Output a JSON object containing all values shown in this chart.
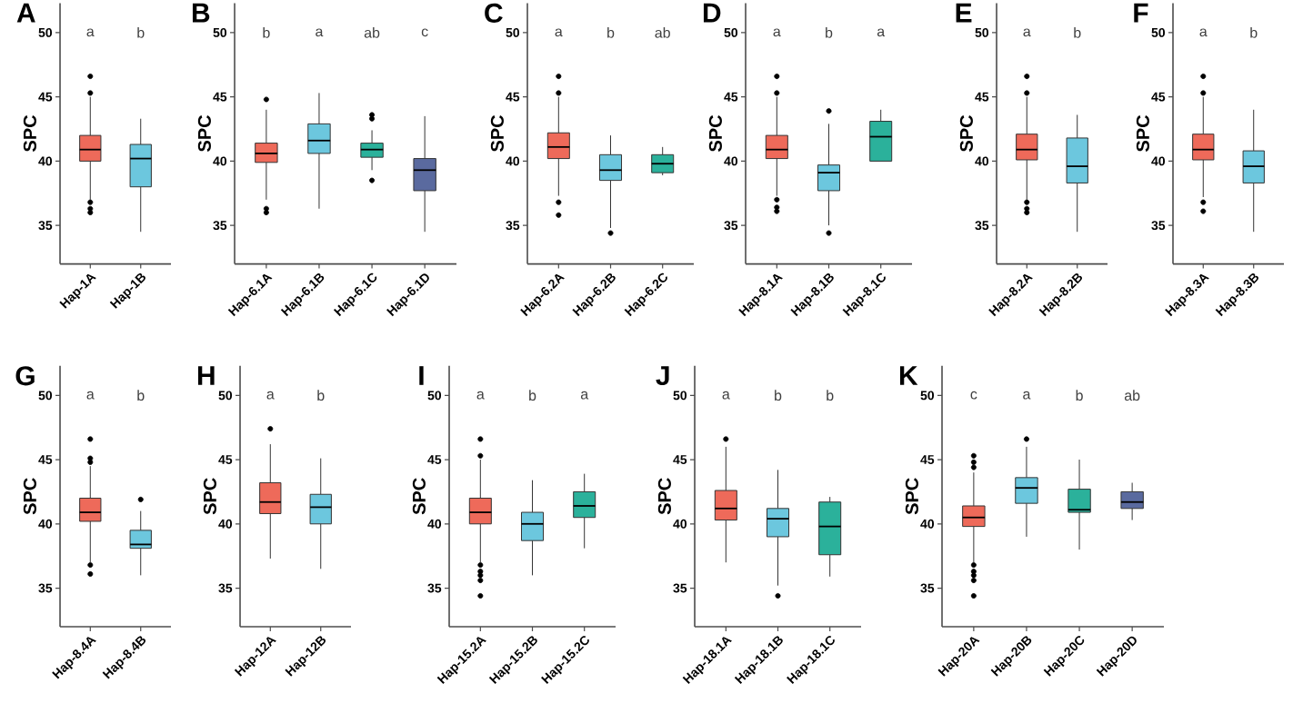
{
  "chart_data": [
    {
      "type": "box",
      "title": "A",
      "ylabel": "SPC",
      "categories": [
        "Hap-1A",
        "Hap-1B"
      ],
      "colors": [
        "#ee6a5a",
        "#6cc7de"
      ],
      "ylim": [
        32,
        52.3
      ],
      "yticks": [
        35,
        40,
        45,
        50
      ],
      "boxes": [
        {
          "low": 37.0,
          "q1": 40.0,
          "median": 40.9,
          "q3": 42.0,
          "high": 45.0,
          "outliers": [
            46.6,
            45.3,
            36.8,
            36.3,
            36.0
          ]
        },
        {
          "low": 34.5,
          "q1": 38.0,
          "median": 40.2,
          "q3": 41.3,
          "high": 43.3
        }
      ],
      "annotations": [
        "a",
        "b"
      ]
    },
    {
      "type": "box",
      "title": "B",
      "ylabel": "SPC",
      "categories": [
        "Hap-6.1A",
        "Hap-6.1B",
        "Hap-6.1C",
        "Hap-6.1D"
      ],
      "colors": [
        "#ee6a5a",
        "#6cc7de",
        "#2bb19b",
        "#5a6a9f"
      ],
      "ylim": [
        32,
        52.3
      ],
      "yticks": [
        35,
        40,
        45,
        50
      ],
      "boxes": [
        {
          "low": 37.0,
          "q1": 39.9,
          "median": 40.6,
          "q3": 41.4,
          "high": 44.0,
          "outliers": [
            44.8,
            36.3,
            36.0
          ]
        },
        {
          "low": 36.3,
          "q1": 40.6,
          "median": 41.6,
          "q3": 42.9,
          "high": 45.3
        },
        {
          "low": 39.3,
          "q1": 40.3,
          "median": 40.9,
          "q3": 41.4,
          "high": 42.4,
          "outliers": [
            43.6,
            43.3,
            38.5
          ]
        },
        {
          "low": 34.5,
          "q1": 37.7,
          "median": 39.3,
          "q3": 40.2,
          "high": 43.5
        }
      ],
      "annotations": [
        "b",
        "a",
        "ab",
        "c"
      ]
    },
    {
      "type": "box",
      "title": "C",
      "ylabel": "SPC",
      "categories": [
        "Hap-6.2A",
        "Hap-6.2B",
        "Hap-6.2C"
      ],
      "colors": [
        "#ee6a5a",
        "#6cc7de",
        "#2bb19b"
      ],
      "ylim": [
        32,
        52.3
      ],
      "yticks": [
        35,
        40,
        45,
        50
      ],
      "boxes": [
        {
          "low": 37.3,
          "q1": 40.2,
          "median": 41.1,
          "q3": 42.2,
          "high": 45.0,
          "outliers": [
            46.6,
            45.3,
            36.8,
            35.8
          ]
        },
        {
          "low": 34.8,
          "q1": 38.5,
          "median": 39.3,
          "q3": 40.5,
          "high": 42.0,
          "outliers": [
            34.4
          ]
        },
        {
          "low": 38.9,
          "q1": 39.1,
          "median": 39.8,
          "q3": 40.5,
          "high": 41.1
        }
      ],
      "annotations": [
        "a",
        "b",
        "ab"
      ]
    },
    {
      "type": "box",
      "title": "D",
      "ylabel": "SPC",
      "categories": [
        "Hap-8.1A",
        "Hap-8.1B",
        "Hap-8.1C"
      ],
      "colors": [
        "#ee6a5a",
        "#6cc7de",
        "#2bb19b"
      ],
      "ylim": [
        32,
        52.3
      ],
      "yticks": [
        35,
        40,
        45,
        50
      ],
      "boxes": [
        {
          "low": 37.3,
          "q1": 40.2,
          "median": 40.9,
          "q3": 42.0,
          "high": 45.0,
          "outliers": [
            46.6,
            45.3,
            37.0,
            36.4,
            36.1
          ]
        },
        {
          "low": 35.0,
          "q1": 37.7,
          "median": 39.1,
          "q3": 39.7,
          "high": 42.9,
          "outliers": [
            43.9,
            34.4
          ]
        },
        {
          "low": 40.0,
          "q1": 40.0,
          "median": 41.9,
          "q3": 43.1,
          "high": 44.0
        }
      ],
      "annotations": [
        "a",
        "b",
        "a"
      ]
    },
    {
      "type": "box",
      "title": "E",
      "ylabel": "SPC",
      "categories": [
        "Hap-8.2A",
        "Hap-8.2B"
      ],
      "colors": [
        "#ee6a5a",
        "#6cc7de"
      ],
      "ylim": [
        32,
        52.3
      ],
      "yticks": [
        35,
        40,
        45,
        50
      ],
      "boxes": [
        {
          "low": 37.0,
          "q1": 40.1,
          "median": 40.9,
          "q3": 42.1,
          "high": 45.0,
          "outliers": [
            46.6,
            45.3,
            36.8,
            36.3,
            36.0
          ]
        },
        {
          "low": 34.5,
          "q1": 38.3,
          "median": 39.6,
          "q3": 41.8,
          "high": 43.6
        }
      ],
      "annotations": [
        "a",
        "b"
      ]
    },
    {
      "type": "box",
      "title": "F",
      "ylabel": "SPC",
      "categories": [
        "Hap-8.3A",
        "Hap-8.3B"
      ],
      "colors": [
        "#ee6a5a",
        "#6cc7de"
      ],
      "ylim": [
        32,
        52.3
      ],
      "yticks": [
        35,
        40,
        45,
        50
      ],
      "boxes": [
        {
          "low": 37.2,
          "q1": 40.1,
          "median": 40.9,
          "q3": 42.1,
          "high": 45.0,
          "outliers": [
            46.6,
            45.3,
            36.8,
            36.1
          ]
        },
        {
          "low": 34.5,
          "q1": 38.3,
          "median": 39.6,
          "q3": 40.8,
          "high": 44.0
        }
      ],
      "annotations": [
        "a",
        "b"
      ]
    },
    {
      "type": "box",
      "title": "G",
      "ylabel": "SPC",
      "categories": [
        "Hap-8.4A",
        "Hap-8.4B"
      ],
      "colors": [
        "#ee6a5a",
        "#6cc7de"
      ],
      "ylim": [
        32,
        52.3
      ],
      "yticks": [
        35,
        40,
        45,
        50
      ],
      "boxes": [
        {
          "low": 37.0,
          "q1": 40.2,
          "median": 40.9,
          "q3": 42.0,
          "high": 44.5,
          "outliers": [
            46.6,
            45.1,
            44.8,
            36.8,
            36.1
          ]
        },
        {
          "low": 36.0,
          "q1": 38.1,
          "median": 38.4,
          "q3": 39.5,
          "high": 41.0,
          "outliers": [
            41.9
          ]
        }
      ],
      "annotations": [
        "a",
        "b"
      ]
    },
    {
      "type": "box",
      "title": "H",
      "ylabel": "SPC",
      "categories": [
        "Hap-12A",
        "Hap-12B"
      ],
      "colors": [
        "#ee6a5a",
        "#6cc7de"
      ],
      "ylim": [
        32,
        52.3
      ],
      "yticks": [
        35,
        40,
        45,
        50
      ],
      "boxes": [
        {
          "low": 37.3,
          "q1": 40.8,
          "median": 41.7,
          "q3": 43.2,
          "high": 46.2,
          "outliers": [
            47.4
          ]
        },
        {
          "low": 36.5,
          "q1": 40.0,
          "median": 41.3,
          "q3": 42.3,
          "high": 45.1
        }
      ],
      "annotations": [
        "a",
        "b"
      ]
    },
    {
      "type": "box",
      "title": "I",
      "ylabel": "SPC",
      "categories": [
        "Hap-15.2A",
        "Hap-15.2B",
        "Hap-15.2C"
      ],
      "colors": [
        "#ee6a5a",
        "#6cc7de",
        "#2bb19b"
      ],
      "ylim": [
        32,
        52.3
      ],
      "yticks": [
        35,
        40,
        45,
        50
      ],
      "boxes": [
        {
          "low": 37.0,
          "q1": 40.0,
          "median": 40.9,
          "q3": 42.0,
          "high": 45.0,
          "outliers": [
            46.6,
            45.3,
            36.8,
            36.3,
            36.0,
            35.6,
            34.4
          ]
        },
        {
          "low": 36.0,
          "q1": 38.7,
          "median": 40.0,
          "q3": 40.9,
          "high": 43.4
        },
        {
          "low": 38.1,
          "q1": 40.5,
          "median": 41.4,
          "q3": 42.5,
          "high": 43.9
        }
      ],
      "annotations": [
        "a",
        "b",
        "a"
      ]
    },
    {
      "type": "box",
      "title": "J",
      "ylabel": "SPC",
      "categories": [
        "Hap-18.1A",
        "Hap-18.1B",
        "Hap-18.1C"
      ],
      "colors": [
        "#ee6a5a",
        "#6cc7de",
        "#2bb19b"
      ],
      "ylim": [
        32,
        52.3
      ],
      "yticks": [
        35,
        40,
        45,
        50
      ],
      "boxes": [
        {
          "low": 37.0,
          "q1": 40.3,
          "median": 41.2,
          "q3": 42.6,
          "high": 46.0,
          "outliers": [
            46.6
          ]
        },
        {
          "low": 35.2,
          "q1": 39.0,
          "median": 40.4,
          "q3": 41.2,
          "high": 44.2,
          "outliers": [
            34.4
          ]
        },
        {
          "low": 35.9,
          "q1": 37.6,
          "median": 39.8,
          "q3": 41.7,
          "high": 42.1
        }
      ],
      "annotations": [
        "a",
        "b",
        "b"
      ]
    },
    {
      "type": "box",
      "title": "K",
      "ylabel": "SPC",
      "categories": [
        "Hap-20A",
        "Hap-20B",
        "Hap-20C",
        "Hap-20D"
      ],
      "colors": [
        "#ee6a5a",
        "#6cc7de",
        "#2bb19b",
        "#5a6a9f"
      ],
      "ylim": [
        32,
        52.3
      ],
      "yticks": [
        35,
        40,
        45,
        50
      ],
      "boxes": [
        {
          "low": 37.0,
          "q1": 39.8,
          "median": 40.5,
          "q3": 41.4,
          "high": 44.0,
          "outliers": [
            45.3,
            44.8,
            44.4,
            36.8,
            36.3,
            36.0,
            35.6,
            34.4
          ]
        },
        {
          "low": 39.0,
          "q1": 41.6,
          "median": 42.8,
          "q3": 43.6,
          "high": 46.0,
          "outliers": [
            46.6
          ]
        },
        {
          "low": 38.0,
          "q1": 40.9,
          "median": 41.1,
          "q3": 42.7,
          "high": 45.0
        },
        {
          "low": 40.3,
          "q1": 41.2,
          "median": 41.7,
          "q3": 42.5,
          "high": 43.2
        }
      ],
      "annotations": [
        "c",
        "a",
        "b",
        "ab"
      ]
    }
  ]
}
